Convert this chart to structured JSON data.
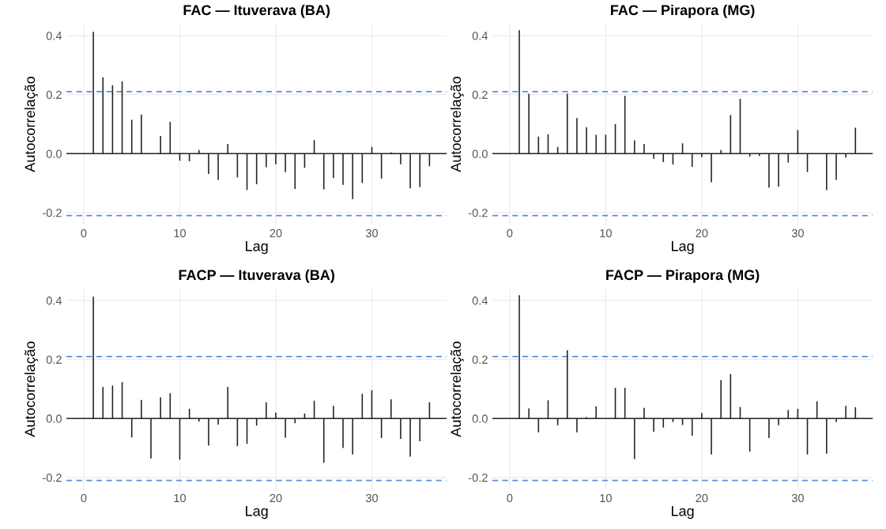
{
  "chart_data": [
    {
      "type": "bar",
      "title": "FAC — Ituverava (BA)",
      "xlabel": "Lag",
      "ylabel": "Autocorrelação",
      "x": [
        1,
        2,
        3,
        4,
        5,
        6,
        7,
        8,
        9,
        10,
        11,
        12,
        13,
        14,
        15,
        16,
        17,
        18,
        19,
        20,
        21,
        22,
        23,
        24,
        25,
        26,
        27,
        28,
        29,
        30,
        31,
        32,
        33,
        34,
        35,
        36
      ],
      "values": [
        0.413,
        0.259,
        0.232,
        0.245,
        0.115,
        0.132,
        0.0,
        0.06,
        0.108,
        -0.024,
        -0.026,
        0.012,
        -0.069,
        -0.089,
        0.033,
        -0.08,
        -0.123,
        -0.104,
        -0.046,
        -0.036,
        -0.063,
        -0.12,
        -0.048,
        0.046,
        -0.121,
        -0.083,
        -0.106,
        -0.154,
        -0.1,
        0.023,
        -0.084,
        0.004,
        -0.036,
        -0.118,
        -0.113,
        -0.043
      ],
      "color": "#222222",
      "xlim": [
        -1.8,
        37.8
      ],
      "xticks": [
        0,
        10,
        20,
        30
      ],
      "ylim": [
        -0.24,
        0.44
      ],
      "yticks": [
        {
          "value": -0.2,
          "label": "-0.2"
        },
        {
          "value": 0,
          "label": "0.0"
        },
        {
          "value": 0.2,
          "label": "0.2"
        },
        {
          "value": 0.4,
          "label": "0.4"
        }
      ],
      "grid": true,
      "ref_lines": [
        {
          "axis": "y",
          "value": 0,
          "color": "#222222",
          "line_style": "solid"
        },
        {
          "axis": "y",
          "value": 0.21,
          "color": "#5b8fd6",
          "line_style": "dashed"
        },
        {
          "axis": "y",
          "value": -0.21,
          "color": "#5b8fd6",
          "line_style": "dashed"
        }
      ]
    },
    {
      "type": "bar",
      "title": "FAC — Pirapora (MG)",
      "xlabel": "Lag",
      "ylabel": "Autocorrelação",
      "x": [
        1,
        2,
        3,
        4,
        5,
        6,
        7,
        8,
        9,
        10,
        11,
        12,
        13,
        14,
        15,
        16,
        17,
        18,
        19,
        20,
        21,
        22,
        23,
        24,
        25,
        26,
        27,
        28,
        29,
        30,
        31,
        32,
        33,
        34,
        35,
        36
      ],
      "values": [
        0.418,
        0.203,
        0.058,
        0.066,
        0.023,
        0.203,
        0.121,
        0.089,
        0.064,
        0.064,
        0.1,
        0.196,
        0.045,
        0.033,
        -0.017,
        -0.029,
        -0.037,
        0.035,
        -0.045,
        -0.012,
        -0.097,
        0.012,
        0.131,
        0.186,
        -0.01,
        -0.008,
        -0.115,
        -0.112,
        -0.03,
        0.08,
        -0.062,
        0.0,
        -0.124,
        -0.089,
        -0.013,
        0.088
      ],
      "color": "#222222",
      "xlim": [
        -1.8,
        37.8
      ],
      "xticks": [
        0,
        10,
        20,
        30
      ],
      "ylim": [
        -0.24,
        0.44
      ],
      "yticks": [
        {
          "value": -0.2,
          "label": "-0.2"
        },
        {
          "value": 0,
          "label": "0.0"
        },
        {
          "value": 0.2,
          "label": "0.2"
        },
        {
          "value": 0.4,
          "label": "0.4"
        }
      ],
      "grid": true,
      "ref_lines": [
        {
          "axis": "y",
          "value": 0,
          "color": "#222222",
          "line_style": "solid"
        },
        {
          "axis": "y",
          "value": 0.21,
          "color": "#5b8fd6",
          "line_style": "dashed"
        },
        {
          "axis": "y",
          "value": -0.21,
          "color": "#5b8fd6",
          "line_style": "dashed"
        }
      ]
    },
    {
      "type": "bar",
      "title": "FACP — Ituverava (BA)",
      "xlabel": "Lag",
      "ylabel": "Autocorrelação",
      "x": [
        1,
        2,
        3,
        4,
        5,
        6,
        7,
        8,
        9,
        10,
        11,
        12,
        13,
        14,
        15,
        16,
        17,
        18,
        19,
        20,
        21,
        22,
        23,
        24,
        25,
        26,
        27,
        28,
        29,
        30,
        31,
        32,
        33,
        34,
        35,
        36
      ],
      "values": [
        0.413,
        0.107,
        0.112,
        0.123,
        -0.064,
        0.063,
        -0.135,
        0.072,
        0.086,
        -0.139,
        0.033,
        -0.011,
        -0.092,
        -0.021,
        0.107,
        -0.094,
        -0.086,
        -0.024,
        0.055,
        0.02,
        -0.065,
        -0.016,
        0.017,
        0.06,
        -0.15,
        0.043,
        -0.1,
        -0.122,
        0.084,
        0.096,
        -0.066,
        0.065,
        -0.069,
        -0.129,
        -0.077,
        0.055
      ],
      "color": "#222222",
      "xlim": [
        -1.8,
        37.8
      ],
      "xticks": [
        0,
        10,
        20,
        30
      ],
      "ylim": [
        -0.24,
        0.44
      ],
      "yticks": [
        {
          "value": -0.2,
          "label": "-0.2"
        },
        {
          "value": 0,
          "label": "0.0"
        },
        {
          "value": 0.2,
          "label": "0.2"
        },
        {
          "value": 0.4,
          "label": "0.4"
        }
      ],
      "grid": true,
      "ref_lines": [
        {
          "axis": "y",
          "value": 0,
          "color": "#222222",
          "line_style": "solid"
        },
        {
          "axis": "y",
          "value": 0.21,
          "color": "#5b8fd6",
          "line_style": "dashed"
        },
        {
          "axis": "y",
          "value": -0.21,
          "color": "#5b8fd6",
          "line_style": "dashed"
        }
      ]
    },
    {
      "type": "bar",
      "title": "FACP — Pirapora (MG)",
      "xlabel": "Lag",
      "ylabel": "Autocorrelação",
      "x": [
        1,
        2,
        3,
        4,
        5,
        6,
        7,
        8,
        9,
        10,
        11,
        12,
        13,
        14,
        15,
        16,
        17,
        18,
        19,
        20,
        21,
        22,
        23,
        24,
        25,
        26,
        27,
        28,
        29,
        30,
        31,
        32,
        33,
        34,
        35,
        36
      ],
      "values": [
        0.418,
        0.034,
        -0.047,
        0.062,
        -0.023,
        0.231,
        -0.047,
        0.005,
        0.041,
        null,
        0.104,
        0.104,
        -0.137,
        0.036,
        -0.045,
        -0.031,
        -0.012,
        -0.022,
        -0.058,
        0.019,
        -0.122,
        0.13,
        0.151,
        0.039,
        -0.112,
        0.0,
        -0.066,
        -0.023,
        0.029,
        0.033,
        -0.122,
        0.058,
        -0.119,
        -0.012,
        0.043,
        0.038
      ],
      "color": "#222222",
      "xlim": [
        -1.8,
        37.8
      ],
      "xticks": [
        0,
        10,
        20,
        30
      ],
      "ylim": [
        -0.24,
        0.44
      ],
      "yticks": [
        {
          "value": -0.2,
          "label": "-0.2"
        },
        {
          "value": 0,
          "label": "0.0"
        },
        {
          "value": 0.2,
          "label": "0.2"
        },
        {
          "value": 0.4,
          "label": "0.4"
        }
      ],
      "grid": true,
      "ref_lines": [
        {
          "axis": "y",
          "value": 0,
          "color": "#222222",
          "line_style": "solid"
        },
        {
          "axis": "y",
          "value": 0.21,
          "color": "#5b8fd6",
          "line_style": "dashed"
        },
        {
          "axis": "y",
          "value": -0.21,
          "color": "#5b8fd6",
          "line_style": "dashed"
        }
      ]
    }
  ]
}
